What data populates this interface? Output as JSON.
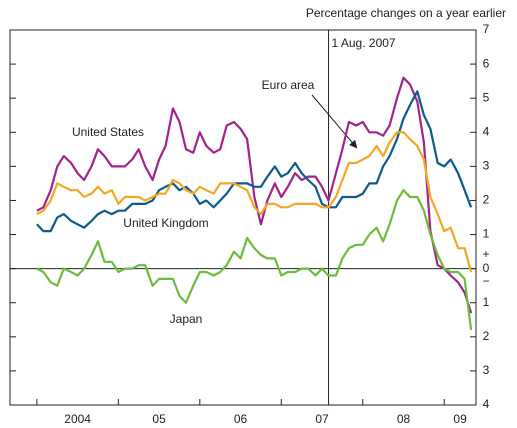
{
  "chart_data": {
    "type": "line",
    "subtitle": "Percentage changes on a year earlier",
    "x": [
      2004,
      2004.08,
      2004.17,
      2004.25,
      2004.33,
      2004.42,
      2004.5,
      2004.58,
      2004.67,
      2004.75,
      2004.83,
      2004.92,
      2005,
      2005.08,
      2005.17,
      2005.25,
      2005.33,
      2005.42,
      2005.5,
      2005.58,
      2005.67,
      2005.75,
      2005.83,
      2005.92,
      2006,
      2006.08,
      2006.17,
      2006.25,
      2006.33,
      2006.42,
      2006.5,
      2006.58,
      2006.67,
      2006.75,
      2006.83,
      2006.92,
      2007,
      2007.08,
      2007.17,
      2007.25,
      2007.33,
      2007.42,
      2007.5,
      2007.58,
      2007.67,
      2007.75,
      2007.83,
      2007.92,
      2008,
      2008.08,
      2008.17,
      2008.25,
      2008.33,
      2008.42,
      2008.5,
      2008.58,
      2008.67,
      2008.75,
      2008.83,
      2008.92,
      2009,
      2009.08,
      2009.17,
      2009.25,
      2009.33
    ],
    "series": [
      {
        "name": "United States",
        "color": "#a3238e",
        "values": [
          1.7,
          1.8,
          2.3,
          3.0,
          3.3,
          3.1,
          2.8,
          2.6,
          3.0,
          3.5,
          3.3,
          3.0,
          3.0,
          3.0,
          3.2,
          3.5,
          3.0,
          2.6,
          3.2,
          3.6,
          4.7,
          4.3,
          3.5,
          3.4,
          4.0,
          3.6,
          3.4,
          3.5,
          4.2,
          4.3,
          4.1,
          3.8,
          2.1,
          1.3,
          2.0,
          2.5,
          2.1,
          2.4,
          2.8,
          2.6,
          2.7,
          2.7,
          2.4,
          2.0,
          2.8,
          3.5,
          4.3,
          4.2,
          4.3,
          4.0,
          4.0,
          3.9,
          4.2,
          5.0,
          5.6,
          5.4,
          4.9,
          3.7,
          1.1,
          0.1,
          0.0,
          -0.2,
          -0.4,
          -0.7,
          -1.3
        ]
      },
      {
        "name": "United Kingdom",
        "color": "#0b5b8c",
        "values": [
          1.3,
          1.1,
          1.1,
          1.5,
          1.6,
          1.4,
          1.3,
          1.2,
          1.4,
          1.6,
          1.7,
          1.6,
          1.7,
          1.7,
          1.9,
          1.9,
          1.9,
          2.0,
          2.3,
          2.4,
          2.5,
          2.3,
          2.4,
          2.2,
          1.9,
          2.0,
          1.8,
          2.0,
          2.2,
          2.5,
          2.5,
          2.5,
          2.4,
          2.4,
          2.7,
          3.0,
          2.7,
          2.8,
          3.1,
          2.8,
          2.6,
          2.4,
          1.9,
          1.8,
          1.8,
          2.1,
          2.1,
          2.1,
          2.2,
          2.5,
          2.5,
          3.0,
          3.3,
          3.8,
          4.4,
          4.8,
          5.2,
          4.5,
          4.1,
          3.1,
          3.0,
          3.2,
          2.8,
          2.3,
          1.8
        ]
      },
      {
        "name": "Euro area",
        "color": "#f6a623",
        "values": [
          1.6,
          1.7,
          2.0,
          2.5,
          2.4,
          2.3,
          2.3,
          2.1,
          2.2,
          2.4,
          2.2,
          2.3,
          1.9,
          2.1,
          2.1,
          2.1,
          2.0,
          2.1,
          2.2,
          2.2,
          2.6,
          2.5,
          2.3,
          2.2,
          2.4,
          2.3,
          2.2,
          2.5,
          2.5,
          2.5,
          2.4,
          2.3,
          1.8,
          1.6,
          1.9,
          1.9,
          1.8,
          1.8,
          1.9,
          1.9,
          1.9,
          1.9,
          1.8,
          1.8,
          2.1,
          2.6,
          3.1,
          3.1,
          3.2,
          3.3,
          3.6,
          3.3,
          3.7,
          4.0,
          4.0,
          3.8,
          3.6,
          3.2,
          2.1,
          1.6,
          1.1,
          1.2,
          0.6,
          0.6,
          -0.1
        ]
      },
      {
        "name": "Japan",
        "color": "#6cbd3b",
        "values": [
          0.0,
          -0.1,
          -0.4,
          -0.5,
          0.0,
          -0.1,
          -0.2,
          0.0,
          0.4,
          0.8,
          0.2,
          0.2,
          -0.1,
          0.0,
          0.0,
          0.1,
          0.1,
          -0.5,
          -0.3,
          -0.3,
          -0.3,
          -0.8,
          -1.0,
          -0.5,
          -0.1,
          -0.1,
          -0.2,
          -0.1,
          0.1,
          0.5,
          0.3,
          0.9,
          0.6,
          0.4,
          0.3,
          0.3,
          -0.2,
          -0.1,
          -0.1,
          0.0,
          0.0,
          -0.2,
          0.0,
          -0.2,
          -0.2,
          0.3,
          0.6,
          0.7,
          0.7,
          1.0,
          1.2,
          0.8,
          1.3,
          2.0,
          2.3,
          2.1,
          2.1,
          1.7,
          1.0,
          0.4,
          0.0,
          -0.1,
          -0.1,
          -0.3,
          -1.8
        ]
      }
    ],
    "xlim": [
      2003.67,
      2009.39
    ],
    "xticks": [
      2004,
      2005,
      2006,
      2007,
      2008,
      2009
    ],
    "x_labels": [
      "2004",
      "05",
      "06",
      "07",
      "08",
      "09"
    ],
    "ylim": [
      -4,
      7
    ],
    "yticks": [
      {
        "value": -4,
        "label": "4"
      },
      {
        "value": -3,
        "label": "3"
      },
      {
        "value": -2,
        "label": "2"
      },
      {
        "value": -1,
        "label": "1"
      },
      0,
      1,
      2,
      3,
      4,
      5,
      6,
      7
    ],
    "zero_signs": [
      "+",
      "−"
    ],
    "vline": {
      "x": 2007.58,
      "label": "1 Aug. 2007"
    },
    "zero_line": true
  }
}
